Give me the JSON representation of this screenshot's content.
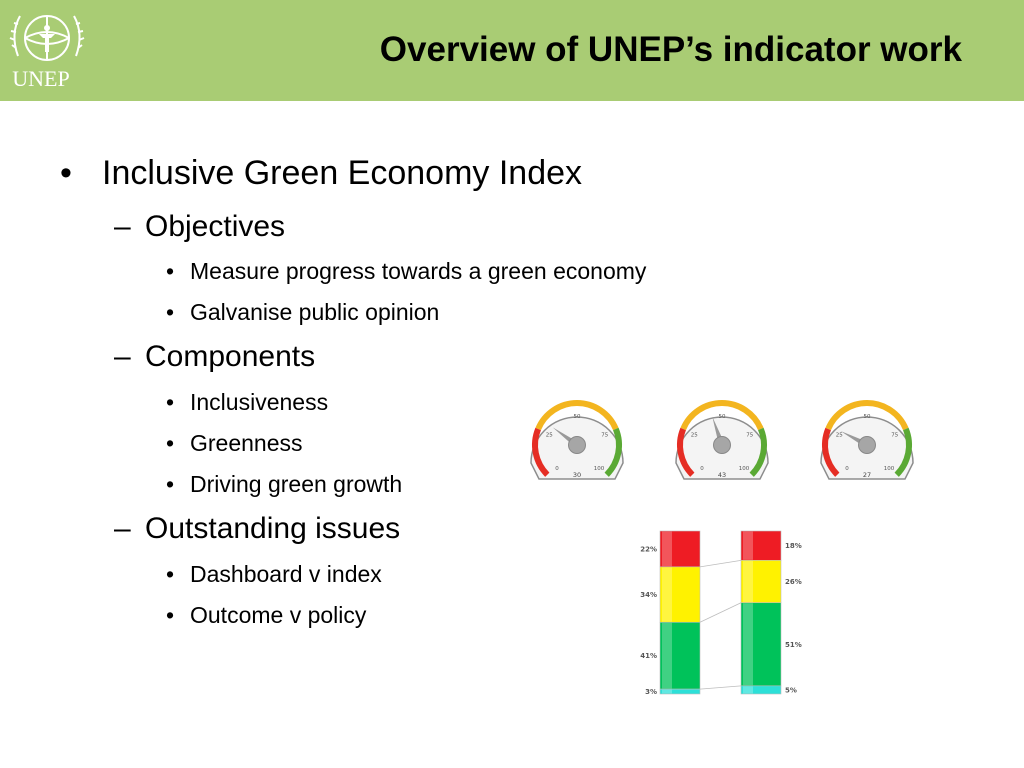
{
  "header": {
    "title": "Overview of UNEP’s indicator work",
    "logo_text": "UNEP",
    "background_color": "#a9cc74"
  },
  "content": {
    "main_bullet": "Inclusive Green Economy Index",
    "sections": [
      {
        "heading": "Objectives",
        "items": [
          "Measure progress towards a green economy",
          "Galvanise public opinion"
        ]
      },
      {
        "heading": "Components",
        "items": [
          "Inclusiveness",
          "Greenness",
          "Driving green growth"
        ]
      },
      {
        "heading": "Outstanding issues",
        "items": [
          "Dashboard v index",
          "Outcome v policy"
        ]
      }
    ]
  },
  "chart_data": [
    {
      "type": "gauge",
      "gauges": [
        {
          "value": "30",
          "ticks": [
            "0",
            "25",
            "50",
            "75",
            "100"
          ]
        },
        {
          "value": "43",
          "ticks": [
            "0",
            "25",
            "50",
            "75",
            "100"
          ]
        },
        {
          "value": "27",
          "ticks": [
            "0",
            "25",
            "50",
            "75",
            "100"
          ]
        }
      ],
      "colors": {
        "low": "#e52d24",
        "mid": "#f3b51f",
        "high": "#5aa934"
      }
    },
    {
      "type": "bar",
      "stacked": true,
      "series": [
        {
          "values": [
            22,
            18
          ],
          "color": "#ee1c24",
          "labels": [
            "22%",
            "18%"
          ]
        },
        {
          "values": [
            34,
            26
          ],
          "color": "#fff200",
          "labels": [
            "34%",
            "26%"
          ]
        },
        {
          "values": [
            41,
            51
          ],
          "color": "#00c25a",
          "labels": [
            "41%",
            "51%"
          ]
        },
        {
          "values": [
            3,
            5
          ],
          "color": "#2de0d8",
          "labels": [
            "3%",
            "5%"
          ]
        }
      ]
    }
  ]
}
